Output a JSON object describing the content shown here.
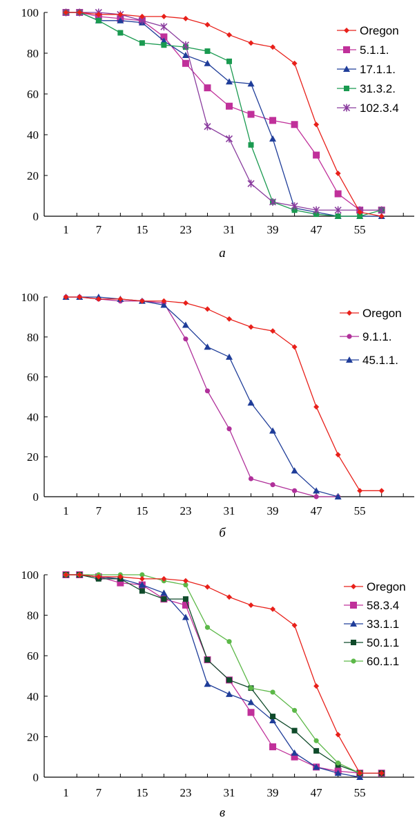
{
  "chart_data": [
    {
      "type": "line",
      "caption": "а",
      "xlim": [
        -3,
        65
      ],
      "ylim": [
        0,
        100
      ],
      "x_ticks": [
        1,
        7,
        15,
        23,
        31,
        39,
        47,
        55
      ],
      "y_ticks": [
        0,
        20,
        40,
        60,
        80,
        100
      ],
      "legend_position": "top-right",
      "series": [
        {
          "name": "Oregon",
          "color": "#e8201a",
          "marker": "diamond",
          "x": [
            1,
            3.5,
            7,
            11,
            15,
            19,
            23,
            27,
            31,
            35,
            39,
            43,
            47,
            51,
            55,
            59
          ],
          "y": [
            100,
            100,
            99,
            99,
            98,
            98,
            97,
            94,
            89,
            85,
            83,
            75,
            45,
            21,
            2,
            0
          ]
        },
        {
          "name": "5.1.1.",
          "color": "#c0309a",
          "marker": "square",
          "x": [
            1,
            3.5,
            7,
            11,
            15,
            19,
            23,
            27,
            31,
            35,
            39,
            43,
            47,
            51,
            55,
            59
          ],
          "y": [
            100,
            100,
            98,
            97,
            96,
            88,
            75,
            63,
            54,
            50,
            47,
            45,
            30,
            11,
            3,
            3
          ]
        },
        {
          "name": "17.1.1.",
          "color": "#1f3d99",
          "marker": "triangle",
          "x": [
            1,
            3.5,
            7,
            11,
            15,
            19,
            23,
            27,
            31,
            35,
            39,
            43,
            47,
            51,
            55,
            59
          ],
          "y": [
            100,
            100,
            96,
            96,
            95,
            86,
            79,
            75,
            66,
            65,
            38,
            4,
            2,
            0,
            0,
            0
          ]
        },
        {
          "name": "31.3.2.",
          "color": "#1a9a50",
          "marker": "square-small",
          "x": [
            1,
            3.5,
            7,
            11,
            15,
            19,
            23,
            27,
            31,
            35,
            39,
            43,
            47,
            51,
            55,
            59
          ],
          "y": [
            100,
            100,
            96,
            90,
            85,
            84,
            83,
            81,
            76,
            35,
            7,
            3,
            1,
            0,
            0,
            3
          ]
        },
        {
          "name": "102.3.4",
          "color": "#8a3c9e",
          "marker": "star",
          "x": [
            1,
            3.5,
            7,
            11,
            15,
            19,
            23,
            27,
            31,
            35,
            39,
            43,
            47,
            51,
            55,
            59
          ],
          "y": [
            100,
            100,
            100,
            99,
            96,
            93,
            84,
            44,
            38,
            16,
            7,
            5,
            3,
            3,
            3,
            3
          ]
        }
      ]
    },
    {
      "type": "line",
      "caption": "б",
      "xlim": [
        -3,
        65
      ],
      "ylim": [
        0,
        100
      ],
      "x_ticks": [
        1,
        7,
        15,
        23,
        31,
        39,
        47,
        55
      ],
      "y_ticks": [
        0,
        20,
        40,
        60,
        80,
        100
      ],
      "legend_position": "top-right",
      "series": [
        {
          "name": "Oregon",
          "color": "#e8201a",
          "marker": "diamond",
          "x": [
            1,
            3.5,
            7,
            11,
            15,
            19,
            23,
            27,
            31,
            35,
            39,
            43,
            47,
            51,
            55,
            59
          ],
          "y": [
            100,
            100,
            99,
            99,
            98,
            98,
            97,
            94,
            89,
            85,
            83,
            75,
            45,
            21,
            3,
            3
          ]
        },
        {
          "name": "9.1.1.",
          "color": "#b0309a",
          "marker": "circle",
          "x": [
            1,
            3.5,
            7,
            11,
            15,
            19,
            23,
            27,
            31,
            35,
            39,
            43,
            47,
            51
          ],
          "y": [
            100,
            100,
            99,
            98,
            98,
            97,
            79,
            53,
            34,
            9,
            6,
            3,
            0,
            0
          ]
        },
        {
          "name": "45.1.1.",
          "color": "#1f3d99",
          "marker": "triangle",
          "x": [
            1,
            3.5,
            7,
            11,
            15,
            19,
            23,
            27,
            31,
            35,
            39,
            43,
            47,
            51
          ],
          "y": [
            100,
            100,
            100,
            99,
            98,
            96,
            86,
            75,
            70,
            47,
            33,
            13,
            3,
            0
          ]
        }
      ]
    },
    {
      "type": "line",
      "caption": "в",
      "xlim": [
        -3,
        65
      ],
      "ylim": [
        0,
        100
      ],
      "x_ticks": [
        1,
        7,
        15,
        23,
        31,
        39,
        47,
        55
      ],
      "y_ticks": [
        0,
        20,
        40,
        60,
        80,
        100
      ],
      "legend_position": "top-right",
      "series": [
        {
          "name": "Oregon",
          "color": "#e8201a",
          "marker": "diamond",
          "x": [
            1,
            3.5,
            7,
            11,
            15,
            19,
            23,
            27,
            31,
            35,
            39,
            43,
            47,
            51,
            55,
            59
          ],
          "y": [
            100,
            100,
            99,
            99,
            98,
            98,
            97,
            94,
            89,
            85,
            83,
            75,
            45,
            21,
            2,
            2
          ]
        },
        {
          "name": "58.3.4",
          "color": "#c0309a",
          "marker": "square",
          "x": [
            1,
            3.5,
            7,
            11,
            15,
            19,
            23,
            27,
            31,
            35,
            39,
            43,
            47,
            51,
            55,
            59
          ],
          "y": [
            100,
            100,
            99,
            96,
            95,
            88,
            85,
            58,
            48,
            32,
            15,
            10,
            5,
            3,
            2,
            2
          ]
        },
        {
          "name": "33.1.1",
          "color": "#1f3d99",
          "marker": "triangle",
          "x": [
            1,
            3.5,
            7,
            11,
            15,
            19,
            23,
            27,
            31,
            35,
            39,
            43,
            47,
            51,
            55
          ],
          "y": [
            100,
            100,
            99,
            98,
            95,
            91,
            79,
            46,
            41,
            37,
            28,
            12,
            5,
            2,
            0
          ]
        },
        {
          "name": "50.1.1",
          "color": "#0f4a2a",
          "marker": "square-small",
          "x": [
            1,
            3.5,
            7,
            11,
            15,
            19,
            23,
            27,
            31,
            35,
            39,
            43,
            47,
            51,
            55,
            59
          ],
          "y": [
            100,
            100,
            98,
            98,
            92,
            88,
            88,
            58,
            48,
            44,
            30,
            23,
            13,
            6,
            2,
            2
          ]
        },
        {
          "name": "60.1.1",
          "color": "#5cb848",
          "marker": "circle",
          "x": [
            1,
            3.5,
            7,
            11,
            15,
            19,
            23,
            27,
            31,
            35,
            39,
            43,
            47,
            51,
            55
          ],
          "y": [
            100,
            100,
            100,
            100,
            100,
            97,
            95,
            74,
            67,
            44,
            42,
            33,
            18,
            7,
            2
          ]
        }
      ]
    }
  ]
}
